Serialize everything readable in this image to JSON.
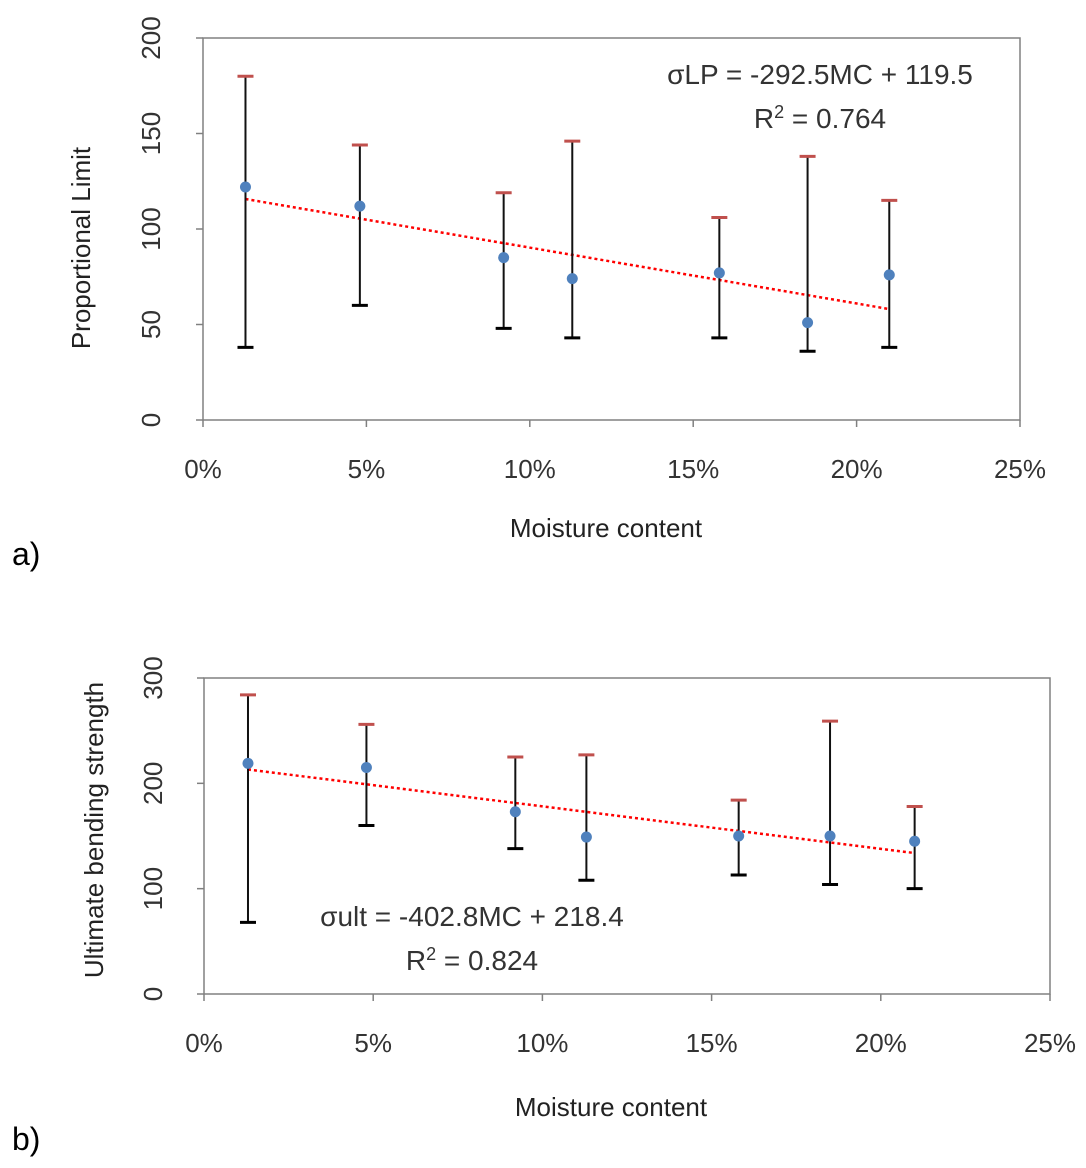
{
  "chart_data": [
    {
      "type": "scatter",
      "panel_label": "a)",
      "title": "",
      "xlabel": "Moisture content",
      "ylabel": "Proportional Limit",
      "xlim": [
        0,
        0.25
      ],
      "ylim": [
        0,
        200
      ],
      "x_ticks": [
        "0%",
        "5%",
        "10%",
        "15%",
        "20%",
        "25%"
      ],
      "y_ticks": [
        "0",
        "50",
        "100",
        "150",
        "200"
      ],
      "grid": false,
      "x": [
        0.013,
        0.048,
        0.092,
        0.113,
        0.158,
        0.185,
        0.21
      ],
      "y": [
        122,
        112,
        85,
        74,
        77,
        51,
        76
      ],
      "error_upper": [
        180,
        144,
        119,
        146,
        106,
        138,
        115
      ],
      "error_lower": [
        38,
        60,
        48,
        43,
        43,
        36,
        38
      ],
      "trendline": {
        "equation_prefix": "σLP = -292.5MC + 119.5",
        "r2_prefix": "R",
        "r2_sup": "2",
        "r2_suffix": " = 0.764",
        "slope": -292.5,
        "intercept": 119.5,
        "x_range": [
          0.013,
          0.21
        ]
      },
      "colors": {
        "points": "#4f81bd",
        "trend": "#ff0000",
        "upper_cap": "#c0504d",
        "lower_cap": "#000000"
      }
    },
    {
      "type": "scatter",
      "panel_label": "b)",
      "title": "",
      "xlabel": "Moisture content",
      "ylabel": "Ultimate bending strength",
      "xlim": [
        0,
        0.25
      ],
      "ylim": [
        0,
        300
      ],
      "x_ticks": [
        "0%",
        "5%",
        "10%",
        "15%",
        "20%",
        "25%"
      ],
      "y_ticks": [
        "0",
        "100",
        "200",
        "300"
      ],
      "grid": false,
      "x": [
        0.013,
        0.048,
        0.092,
        0.113,
        0.158,
        0.185,
        0.21
      ],
      "y": [
        219,
        215,
        173,
        149,
        150,
        150,
        145
      ],
      "error_upper": [
        284,
        256,
        225,
        227,
        184,
        259,
        178
      ],
      "error_lower": [
        68,
        160,
        138,
        108,
        113,
        104,
        100
      ],
      "trendline": {
        "equation_prefix": "σult = -402.8MC + 218.4",
        "r2_prefix": "R",
        "r2_sup": "2",
        "r2_suffix": " = 0.824",
        "slope": -402.8,
        "intercept": 218.4,
        "x_range": [
          0.013,
          0.21
        ]
      },
      "colors": {
        "points": "#4f81bd",
        "trend": "#ff0000",
        "upper_cap": "#c0504d",
        "lower_cap": "#000000"
      }
    }
  ]
}
